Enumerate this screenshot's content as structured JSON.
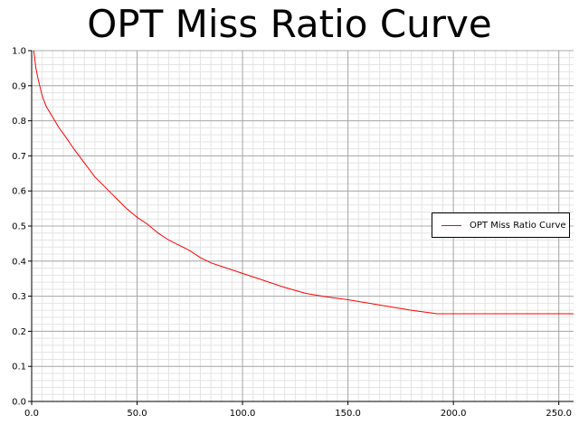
{
  "chart_data": {
    "type": "line",
    "title": "OPT Miss Ratio Curve",
    "xlabel": "",
    "ylabel": "",
    "xlim": [
      0,
      257
    ],
    "ylim": [
      0,
      1.0
    ],
    "x_ticks": [
      "0.0",
      "50.0",
      "100.0",
      "150.0",
      "200.0",
      "250.0"
    ],
    "y_ticks": [
      "0.0",
      "0.1",
      "0.2",
      "0.3",
      "0.4",
      "0.5",
      "0.6",
      "0.7",
      "0.8",
      "0.9",
      "1.0"
    ],
    "grid": true,
    "legend_position": "right",
    "series": [
      {
        "name": "OPT Miss Ratio Curve",
        "color": "#ff0000",
        "x": [
          1,
          2,
          3,
          5,
          7,
          10,
          13,
          16,
          20,
          25,
          30,
          35,
          40,
          45,
          50,
          55,
          60,
          65,
          70,
          75,
          80,
          85,
          90,
          95,
          100,
          110,
          120,
          130,
          140,
          150,
          160,
          170,
          180,
          190,
          192,
          200,
          220,
          240,
          257
        ],
        "y": [
          1.0,
          0.95,
          0.92,
          0.87,
          0.84,
          0.81,
          0.78,
          0.755,
          0.72,
          0.68,
          0.64,
          0.61,
          0.58,
          0.55,
          0.525,
          0.505,
          0.48,
          0.46,
          0.445,
          0.43,
          0.41,
          0.395,
          0.385,
          0.375,
          0.365,
          0.345,
          0.325,
          0.308,
          0.298,
          0.29,
          0.28,
          0.27,
          0.26,
          0.252,
          0.25,
          0.25,
          0.25,
          0.25,
          0.25
        ]
      }
    ]
  }
}
